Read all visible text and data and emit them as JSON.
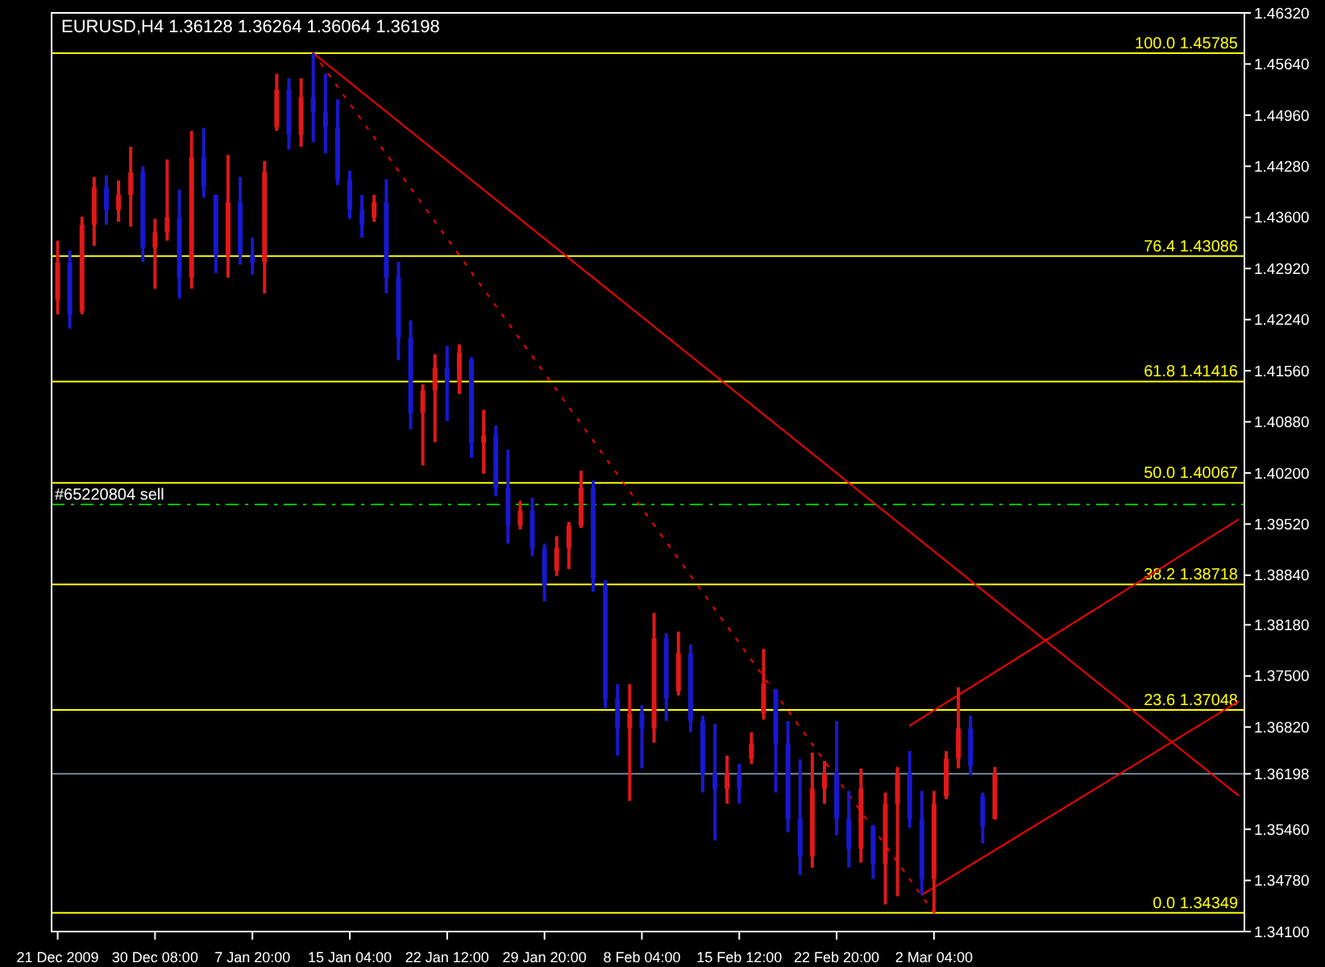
{
  "chart_data": {
    "type": "candlestick",
    "title": "EURUSD,H4  1.36128 1.36264 1.36064 1.36198",
    "categories": [
      "21 Dec 2009",
      null,
      null,
      null,
      null,
      null,
      null,
      null,
      "30 Dec 08:00",
      null,
      null,
      null,
      null,
      null,
      null,
      null,
      "7 Jan 20:00",
      null,
      null,
      null,
      null,
      null,
      null,
      null,
      "15 Jan 04:00",
      null,
      null,
      null,
      null,
      null,
      null,
      null,
      "22 Jan 12:00",
      null,
      null,
      null,
      null,
      null,
      null,
      null,
      "29 Jan 20:00",
      null,
      null,
      null,
      null,
      null,
      null,
      null,
      "8 Feb 04:00",
      null,
      null,
      null,
      null,
      null,
      null,
      null,
      "15 Feb 12:00",
      null,
      null,
      null,
      null,
      null,
      null,
      null,
      "22 Feb 20:00",
      null,
      null,
      null,
      null,
      null,
      null,
      null,
      "2 Mar 04:00",
      null,
      null,
      null,
      null,
      null,
      null,
      null,
      null,
      null,
      null,
      null,
      null,
      null,
      null,
      null,
      null,
      null,
      null,
      null,
      null,
      null,
      null,
      null,
      null,
      null
    ],
    "ylim": [
      1.341,
      1.4632
    ],
    "yticks": [
      {
        "value": 1.4632,
        "label": "1.46320"
      },
      {
        "value": 1.4564,
        "label": "1.45640"
      },
      {
        "value": 1.4496,
        "label": "1.44960"
      },
      {
        "value": 1.4428,
        "label": "1.44280"
      },
      {
        "value": 1.436,
        "label": "1.43600"
      },
      {
        "value": 1.4292,
        "label": "1.42920"
      },
      {
        "value": 1.4224,
        "label": "1.42240"
      },
      {
        "value": 1.4156,
        "label": "1.41560"
      },
      {
        "value": 1.4088,
        "label": "1.40880"
      },
      {
        "value": 1.402,
        "label": "1.40200"
      },
      {
        "value": 1.3952,
        "label": "1.39520"
      },
      {
        "value": 1.3884,
        "label": "1.38840"
      },
      {
        "value": 1.3818,
        "label": "1.38180"
      },
      {
        "value": 1.375,
        "label": "1.37500"
      },
      {
        "value": 1.3682,
        "label": "1.36820"
      },
      {
        "value": 1.36198,
        "label": "1.36198"
      },
      {
        "value": 1.3546,
        "label": "1.35460"
      },
      {
        "value": 1.3478,
        "label": "1.34780"
      },
      {
        "value": 1.341,
        "label": "1.34100"
      }
    ],
    "ref_lines": [
      {
        "axis": "y",
        "value": 1.45785,
        "label": "100.0  1.45785",
        "color": "#ffff00"
      },
      {
        "axis": "y",
        "value": 1.43086,
        "label": "76.4  1.43086",
        "color": "#ffff00"
      },
      {
        "axis": "y",
        "value": 1.41416,
        "label": "61.8  1.41416",
        "color": "#ffff00"
      },
      {
        "axis": "y",
        "value": 1.40067,
        "label": "50.0  1.40067",
        "color": "#ffff00"
      },
      {
        "axis": "y",
        "value": 1.38718,
        "label": "38.2  1.38718",
        "color": "#ffff00"
      },
      {
        "axis": "y",
        "value": 1.37048,
        "label": "23.6  1.37048",
        "color": "#ffff00"
      },
      {
        "axis": "y",
        "value": 1.34349,
        "label": "0.0  1.34349",
        "color": "#ffff00"
      },
      {
        "axis": "y",
        "value": 1.3978,
        "label": "#65220804 sell",
        "color": "#00c000",
        "line_style": "dashed"
      },
      {
        "axis": "y",
        "value": 1.36198,
        "color": "#778899"
      }
    ],
    "ohlc": [
      [
        1.425,
        1.4329,
        1.4231,
        1.43
      ],
      [
        1.43,
        1.4316,
        1.4212,
        1.423
      ],
      [
        1.4235,
        1.4361,
        1.4231,
        1.435
      ],
      [
        1.435,
        1.4414,
        1.4322,
        1.44
      ],
      [
        1.44,
        1.4416,
        1.435,
        1.437
      ],
      [
        1.437,
        1.4409,
        1.4354,
        1.439
      ],
      [
        1.439,
        1.4454,
        1.4348,
        1.442
      ],
      [
        1.442,
        1.4428,
        1.4301,
        1.432
      ],
      [
        1.432,
        1.4358,
        1.4265,
        1.434
      ],
      [
        1.434,
        1.4437,
        1.4329,
        1.436
      ],
      [
        1.436,
        1.4397,
        1.4252,
        1.428
      ],
      [
        1.428,
        1.4475,
        1.4265,
        1.444
      ],
      [
        1.444,
        1.4479,
        1.4386,
        1.44
      ],
      [
        1.439,
        1.439,
        1.4286,
        1.431
      ],
      [
        1.431,
        1.4443,
        1.428,
        1.438
      ],
      [
        1.438,
        1.4414,
        1.4297,
        1.431
      ],
      [
        1.431,
        1.4333,
        1.4284,
        1.43
      ],
      [
        1.43,
        1.4435,
        1.4259,
        1.442
      ],
      [
        1.448,
        1.4551,
        1.4475,
        1.453
      ],
      [
        1.453,
        1.4545,
        1.445,
        1.447
      ],
      [
        1.447,
        1.4545,
        1.4454,
        1.452
      ],
      [
        1.452,
        1.45785,
        1.446,
        1.45
      ],
      [
        1.45,
        1.4551,
        1.4445,
        1.448
      ],
      [
        1.448,
        1.4517,
        1.4403,
        1.441
      ],
      [
        1.441,
        1.4422,
        1.4358,
        1.437
      ],
      [
        1.437,
        1.439,
        1.4333,
        1.435
      ],
      [
        1.436,
        1.439,
        1.4354,
        1.438
      ],
      [
        1.438,
        1.4411,
        1.4259,
        1.428
      ],
      [
        1.428,
        1.4301,
        1.417,
        1.42
      ],
      [
        1.42,
        1.4223,
        1.4078,
        1.41
      ],
      [
        1.41,
        1.4138,
        1.403,
        1.413
      ],
      [
        1.413,
        1.4178,
        1.4061,
        1.416
      ],
      [
        1.416,
        1.4189,
        1.4089,
        1.414
      ],
      [
        1.414,
        1.4191,
        1.4125,
        1.418
      ],
      [
        1.417,
        1.4174,
        1.404,
        1.406
      ],
      [
        1.406,
        1.4104,
        1.4019,
        1.407
      ],
      [
        1.407,
        1.4083,
        1.3989,
        1.4
      ],
      [
        1.4,
        1.4051,
        1.3926,
        1.395
      ],
      [
        1.395,
        1.3983,
        1.3945,
        1.397
      ],
      [
        1.397,
        1.3987,
        1.3909,
        1.392
      ],
      [
        1.392,
        1.3926,
        1.3849,
        1.387
      ],
      [
        1.389,
        1.3936,
        1.3883,
        1.392
      ],
      [
        1.392,
        1.3955,
        1.3892,
        1.395
      ],
      [
        1.395,
        1.4023,
        1.3947,
        1.4
      ],
      [
        1.4,
        1.401,
        1.3862,
        1.388
      ],
      [
        1.387,
        1.3877,
        1.3707,
        1.372
      ],
      [
        1.372,
        1.3739,
        1.3644,
        1.368
      ],
      [
        1.368,
        1.3739,
        1.3584,
        1.37
      ],
      [
        1.37,
        1.3711,
        1.3627,
        1.368
      ],
      [
        1.368,
        1.3834,
        1.3661,
        1.38
      ],
      [
        1.38,
        1.3807,
        1.369,
        1.372
      ],
      [
        1.373,
        1.3809,
        1.3724,
        1.378
      ],
      [
        1.378,
        1.3792,
        1.3675,
        1.369
      ],
      [
        1.369,
        1.3697,
        1.3595,
        1.362
      ],
      [
        1.362,
        1.3686,
        1.3531,
        1.36
      ],
      [
        1.36,
        1.3644,
        1.358,
        1.362
      ],
      [
        1.362,
        1.3633,
        1.358,
        1.36
      ],
      [
        1.364,
        1.3675,
        1.3633,
        1.366
      ],
      [
        1.37,
        1.3786,
        1.3692,
        1.374
      ],
      [
        1.373,
        1.3733,
        1.3595,
        1.366
      ],
      [
        1.366,
        1.369,
        1.3542,
        1.356
      ],
      [
        1.356,
        1.3639,
        1.3485,
        1.351
      ],
      [
        1.351,
        1.3648,
        1.3495,
        1.36
      ],
      [
        1.36,
        1.3637,
        1.358,
        1.362
      ],
      [
        1.362,
        1.369,
        1.3538,
        1.356
      ],
      [
        1.356,
        1.3597,
        1.3495,
        1.352
      ],
      [
        1.352,
        1.3627,
        1.3502,
        1.36
      ],
      [
        1.355,
        1.3552,
        1.348,
        1.35
      ],
      [
        1.35,
        1.3595,
        1.3446,
        1.358
      ],
      [
        1.358,
        1.3629,
        1.3457,
        1.362
      ],
      [
        1.362,
        1.365,
        1.3548,
        1.356
      ],
      [
        1.356,
        1.3597,
        1.3459,
        1.348
      ],
      [
        1.348,
        1.3597,
        1.34349,
        1.358
      ],
      [
        1.359,
        1.365,
        1.3586,
        1.364
      ],
      [
        1.364,
        1.3735,
        1.3627,
        1.368
      ],
      [
        1.368,
        1.3697,
        1.3618,
        1.363
      ],
      [
        1.359,
        1.3595,
        1.3527,
        1.355
      ],
      [
        1.356,
        1.3629,
        1.3559,
        1.36198
      ],
      null,
      null,
      null,
      null,
      null,
      null,
      null,
      null,
      null,
      null,
      null,
      null,
      null,
      null,
      null,
      null,
      null,
      null,
      null,
      null
    ],
    "colors": [
      "#e01818",
      "#1818d0",
      "#e01818",
      "#e01818",
      "#1818d0",
      "#e01818",
      "#e01818",
      "#1818d0",
      "#e01818",
      "#e01818",
      "#1818d0",
      "#e01818",
      "#1818d0",
      "#1818d0",
      "#e01818",
      "#1818d0",
      "#1818d0",
      "#e01818",
      "#e01818",
      "#1818d0",
      "#e01818",
      "#1818d0",
      "#1818d0",
      "#1818d0",
      "#1818d0",
      "#1818d0",
      "#e01818",
      "#1818d0",
      "#1818d0",
      "#1818d0",
      "#e01818",
      "#e01818",
      "#1818d0",
      "#e01818",
      "#1818d0",
      "#e01818",
      "#1818d0",
      "#1818d0",
      "#e01818",
      "#1818d0",
      "#1818d0",
      "#e01818",
      "#e01818",
      "#e01818",
      "#1818d0",
      "#1818d0",
      "#1818d0",
      "#e01818",
      "#1818d0",
      "#e01818",
      "#1818d0",
      "#e01818",
      "#1818d0",
      "#1818d0",
      "#1818d0",
      "#e01818",
      "#1818d0",
      "#e01818",
      "#e01818",
      "#1818d0",
      "#1818d0",
      "#1818d0",
      "#e01818",
      "#e01818",
      "#1818d0",
      "#1818d0",
      "#e01818",
      "#1818d0",
      "#e01818",
      "#e01818",
      "#1818d0",
      "#1818d0",
      "#e01818",
      "#e01818",
      "#e01818",
      "#1818d0",
      "#1818d0",
      "#e01818",
      null,
      null,
      null,
      null,
      null,
      null,
      null,
      null,
      null,
      null,
      null,
      null,
      null,
      null,
      null,
      null,
      null,
      null,
      null,
      null
    ],
    "series": [
      {
        "type": "line",
        "color": "#ff0000",
        "values": [
          null,
          null,
          null,
          null,
          null,
          null,
          null,
          null,
          null,
          null,
          null,
          null,
          null,
          null,
          null,
          null,
          null,
          null,
          null,
          null,
          null,
          1.45785,
          null,
          null,
          null,
          null,
          null,
          null,
          null,
          null,
          null,
          null,
          null,
          null,
          null,
          null,
          null,
          null,
          null,
          null,
          null,
          null,
          null,
          null,
          null,
          null,
          null,
          null,
          null,
          null,
          null,
          null,
          null,
          null,
          null,
          null,
          null,
          null,
          null,
          null,
          null,
          null,
          null,
          null,
          null,
          null,
          null,
          null,
          null,
          null,
          null,
          null,
          null,
          null,
          null,
          null,
          null,
          null,
          null,
          null,
          null,
          null,
          null,
          null,
          null,
          null,
          null,
          null,
          null,
          null,
          null,
          null,
          null,
          null,
          null,
          null,
          null,
          1.3591
        ]
      },
      {
        "type": "line",
        "color": "#ff0000",
        "line_style": "dotted",
        "values": [
          null,
          null,
          null,
          null,
          null,
          null,
          null,
          null,
          null,
          null,
          null,
          null,
          null,
          null,
          null,
          null,
          null,
          null,
          null,
          null,
          null,
          1.45785,
          null,
          null,
          null,
          null,
          null,
          null,
          null,
          null,
          null,
          null,
          null,
          null,
          null,
          null,
          null,
          null,
          null,
          null,
          null,
          null,
          null,
          null,
          null,
          null,
          null,
          null,
          null,
          null,
          null,
          null,
          null,
          null,
          null,
          null,
          null,
          null,
          null,
          null,
          null,
          null,
          null,
          null,
          null,
          null,
          null,
          null,
          null,
          null,
          null,
          null,
          1.34349,
          null,
          null,
          null,
          null,
          null,
          null,
          null,
          null,
          null,
          null,
          null,
          null,
          null,
          null,
          null,
          null,
          null,
          null,
          null,
          null,
          null,
          null,
          null,
          null,
          null
        ]
      },
      {
        "type": "line",
        "color": "#ff0000",
        "values": [
          null,
          null,
          null,
          null,
          null,
          null,
          null,
          null,
          null,
          null,
          null,
          null,
          null,
          null,
          null,
          null,
          null,
          null,
          null,
          null,
          null,
          null,
          null,
          null,
          null,
          null,
          null,
          null,
          null,
          null,
          null,
          null,
          null,
          null,
          null,
          null,
          null,
          null,
          null,
          null,
          null,
          null,
          null,
          null,
          null,
          null,
          null,
          null,
          null,
          null,
          null,
          null,
          null,
          null,
          null,
          null,
          null,
          null,
          null,
          null,
          null,
          null,
          null,
          null,
          null,
          null,
          null,
          null,
          null,
          null,
          1.3684,
          null,
          null,
          null,
          null,
          null,
          null,
          null,
          null,
          null,
          null,
          null,
          null,
          null,
          null,
          null,
          null,
          null,
          null,
          null,
          null,
          null,
          null,
          null,
          null,
          null,
          null,
          1.3958
        ]
      },
      {
        "type": "line",
        "color": "#ff0000",
        "values": [
          null,
          null,
          null,
          null,
          null,
          null,
          null,
          null,
          null,
          null,
          null,
          null,
          null,
          null,
          null,
          null,
          null,
          null,
          null,
          null,
          null,
          null,
          null,
          null,
          null,
          null,
          null,
          null,
          null,
          null,
          null,
          null,
          null,
          null,
          null,
          null,
          null,
          null,
          null,
          null,
          null,
          null,
          null,
          null,
          null,
          null,
          null,
          null,
          null,
          null,
          null,
          null,
          null,
          null,
          null,
          null,
          null,
          null,
          null,
          null,
          null,
          null,
          null,
          null,
          null,
          null,
          null,
          null,
          null,
          null,
          null,
          1.3459,
          null,
          null,
          null,
          null,
          null,
          null,
          null,
          null,
          null,
          null,
          null,
          null,
          null,
          null,
          null,
          null,
          null,
          null,
          null,
          null,
          null,
          null,
          null,
          null,
          null,
          1.3716
        ]
      }
    ]
  }
}
